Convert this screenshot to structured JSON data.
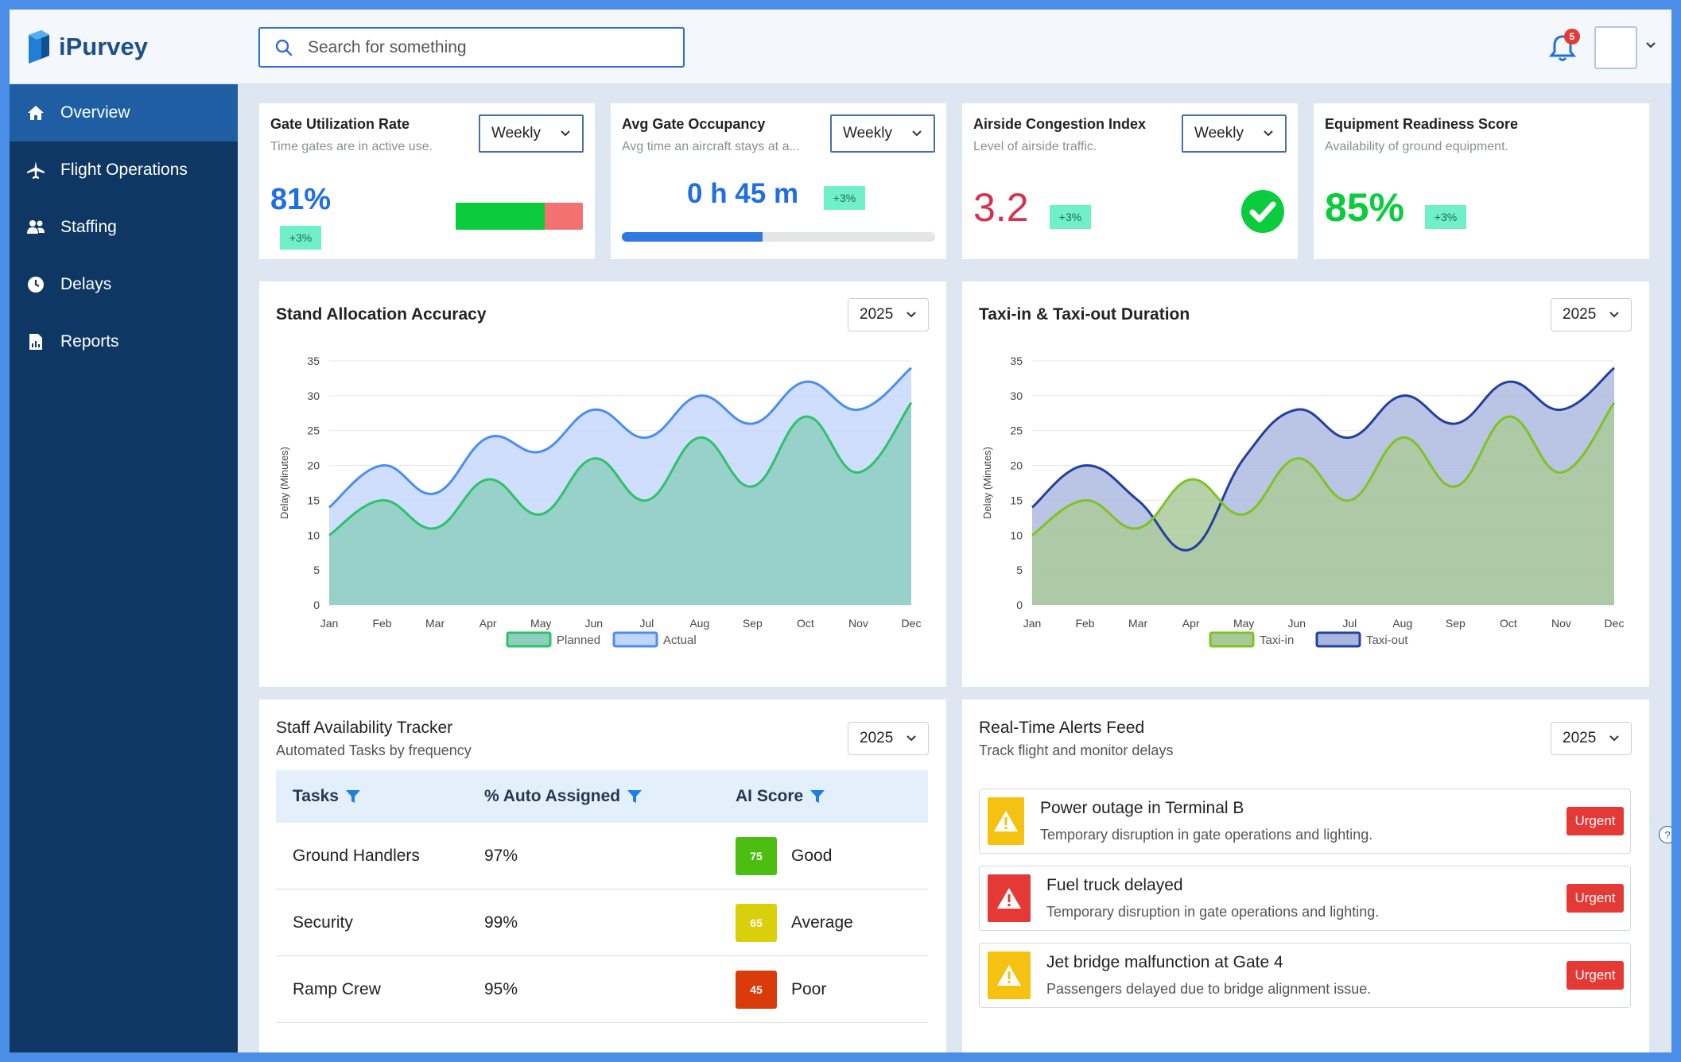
{
  "app": {
    "name": "iPurvey"
  },
  "search": {
    "placeholder": "Search for something"
  },
  "notifications": {
    "count": "5"
  },
  "sidebar": {
    "items": [
      {
        "label": "Overview",
        "icon": "home-icon",
        "active": true
      },
      {
        "label": "Flight Operations",
        "icon": "plane-icon",
        "active": false
      },
      {
        "label": "Staffing",
        "icon": "users-icon",
        "active": false
      },
      {
        "label": "Delays",
        "icon": "clock-icon",
        "active": false
      },
      {
        "label": "Reports",
        "icon": "report-icon",
        "active": false
      }
    ]
  },
  "kpis": {
    "gate_util": {
      "title": "Gate Utilization Rate",
      "subtitle": "Time gates are in active use.",
      "period": "Weekly",
      "value": "81%",
      "change": "+3%",
      "bar_fill": 0.7
    },
    "gate_occ": {
      "title": "Avg Gate Occupancy",
      "subtitle": "Avg time an aircraft stays at a...",
      "period": "Weekly",
      "value": "0 h 45 m",
      "change": "+3%",
      "progress": 0.45
    },
    "congestion": {
      "title": "Airside Congestion Index",
      "subtitle": "Level of airside traffic.",
      "period": "Weekly",
      "value": "3.2",
      "change": "+3%"
    },
    "equipment": {
      "title": "Equipment Readiness Score",
      "subtitle": "Availability of ground equipment.",
      "value": "85%",
      "change": "+3%"
    }
  },
  "charts": {
    "stand": {
      "title": "Stand Allocation Accuracy",
      "year": "2025"
    },
    "taxi": {
      "title": "Taxi-in & Taxi-out Duration",
      "year": "2025"
    }
  },
  "chart_data": [
    {
      "type": "area",
      "title": "Stand Allocation Accuracy",
      "ylabel": "Delay (Minutes)",
      "ylim": [
        0,
        35
      ],
      "yticks": [
        0,
        5,
        10,
        15,
        20,
        25,
        30,
        35
      ],
      "categories": [
        "Jan",
        "Feb",
        "Mar",
        "Apr",
        "May",
        "Jun",
        "Jul",
        "Aug",
        "Sep",
        "Oct",
        "Nov",
        "Dec"
      ],
      "series": [
        {
          "name": "Planned",
          "values": [
            10,
            15,
            11,
            18,
            13,
            21,
            15,
            24,
            17,
            27,
            19,
            29
          ],
          "color": "#2ec26a",
          "fill": "#8ecfc1"
        },
        {
          "name": "Actual",
          "values": [
            14,
            20,
            16,
            24,
            22,
            28,
            24,
            30,
            26,
            32,
            28,
            34
          ],
          "color": "#4a8ef0",
          "fill": "#c2d6fb"
        }
      ],
      "legend": "bottom"
    },
    {
      "type": "area",
      "title": "Taxi-in & Taxi-out Duration",
      "ylabel": "Delay (Minutes)",
      "ylim": [
        0,
        35
      ],
      "yticks": [
        0,
        5,
        10,
        15,
        20,
        25,
        30,
        35
      ],
      "categories": [
        "Jan",
        "Feb",
        "Mar",
        "Apr",
        "May",
        "Jun",
        "Jul",
        "Aug",
        "Sep",
        "Oct",
        "Nov",
        "Dec"
      ],
      "series": [
        {
          "name": "Taxi-in",
          "values": [
            10,
            15,
            11,
            18,
            13,
            21,
            15,
            24,
            17,
            27,
            19,
            29
          ],
          "color": "#7cc424",
          "fill": "#aac99a"
        },
        {
          "name": "Taxi-out",
          "values": [
            14,
            20,
            15,
            8,
            21,
            28,
            24,
            30,
            26,
            32,
            28,
            34
          ],
          "color": "#23409f",
          "fill": "#a9b7e0"
        }
      ],
      "legend": "bottom"
    }
  ],
  "staff": {
    "title": "Staff Availability Tracker",
    "subtitle": "Automated Tasks by frequency",
    "year": "2025",
    "columns": [
      "Tasks",
      "% Auto Assigned",
      "AI Score"
    ],
    "rows": [
      {
        "task": "Ground Handlers",
        "pct": "97%",
        "score": "75",
        "rating": "Good",
        "color": "#4cbe12"
      },
      {
        "task": "Security",
        "pct": "99%",
        "score": "65",
        "rating": "Average",
        "color": "#d9cf0a"
      },
      {
        "task": "Ramp Crew",
        "pct": "95%",
        "score": "45",
        "rating": "Poor",
        "color": "#d93c0a"
      }
    ]
  },
  "alerts": {
    "title": "Real-Time Alerts Feed",
    "subtitle": "Track flight and monitor delays",
    "year": "2025",
    "items": [
      {
        "title": "Power outage in Terminal B",
        "desc": "Temporary disruption in gate operations and lighting.",
        "badge": "Urgent",
        "level": "warning",
        "color": "#f5c211"
      },
      {
        "title": "Fuel truck delayed",
        "desc": "Temporary disruption in gate operations and lighting.",
        "badge": "Urgent",
        "level": "critical",
        "color": "#e53935"
      },
      {
        "title": "Jet bridge malfunction at Gate 4",
        "desc": "Passengers delayed due to bridge alignment issue.",
        "badge": "Urgent",
        "level": "warning",
        "color": "#f5c211"
      }
    ]
  },
  "help": {
    "glyph": "?"
  }
}
